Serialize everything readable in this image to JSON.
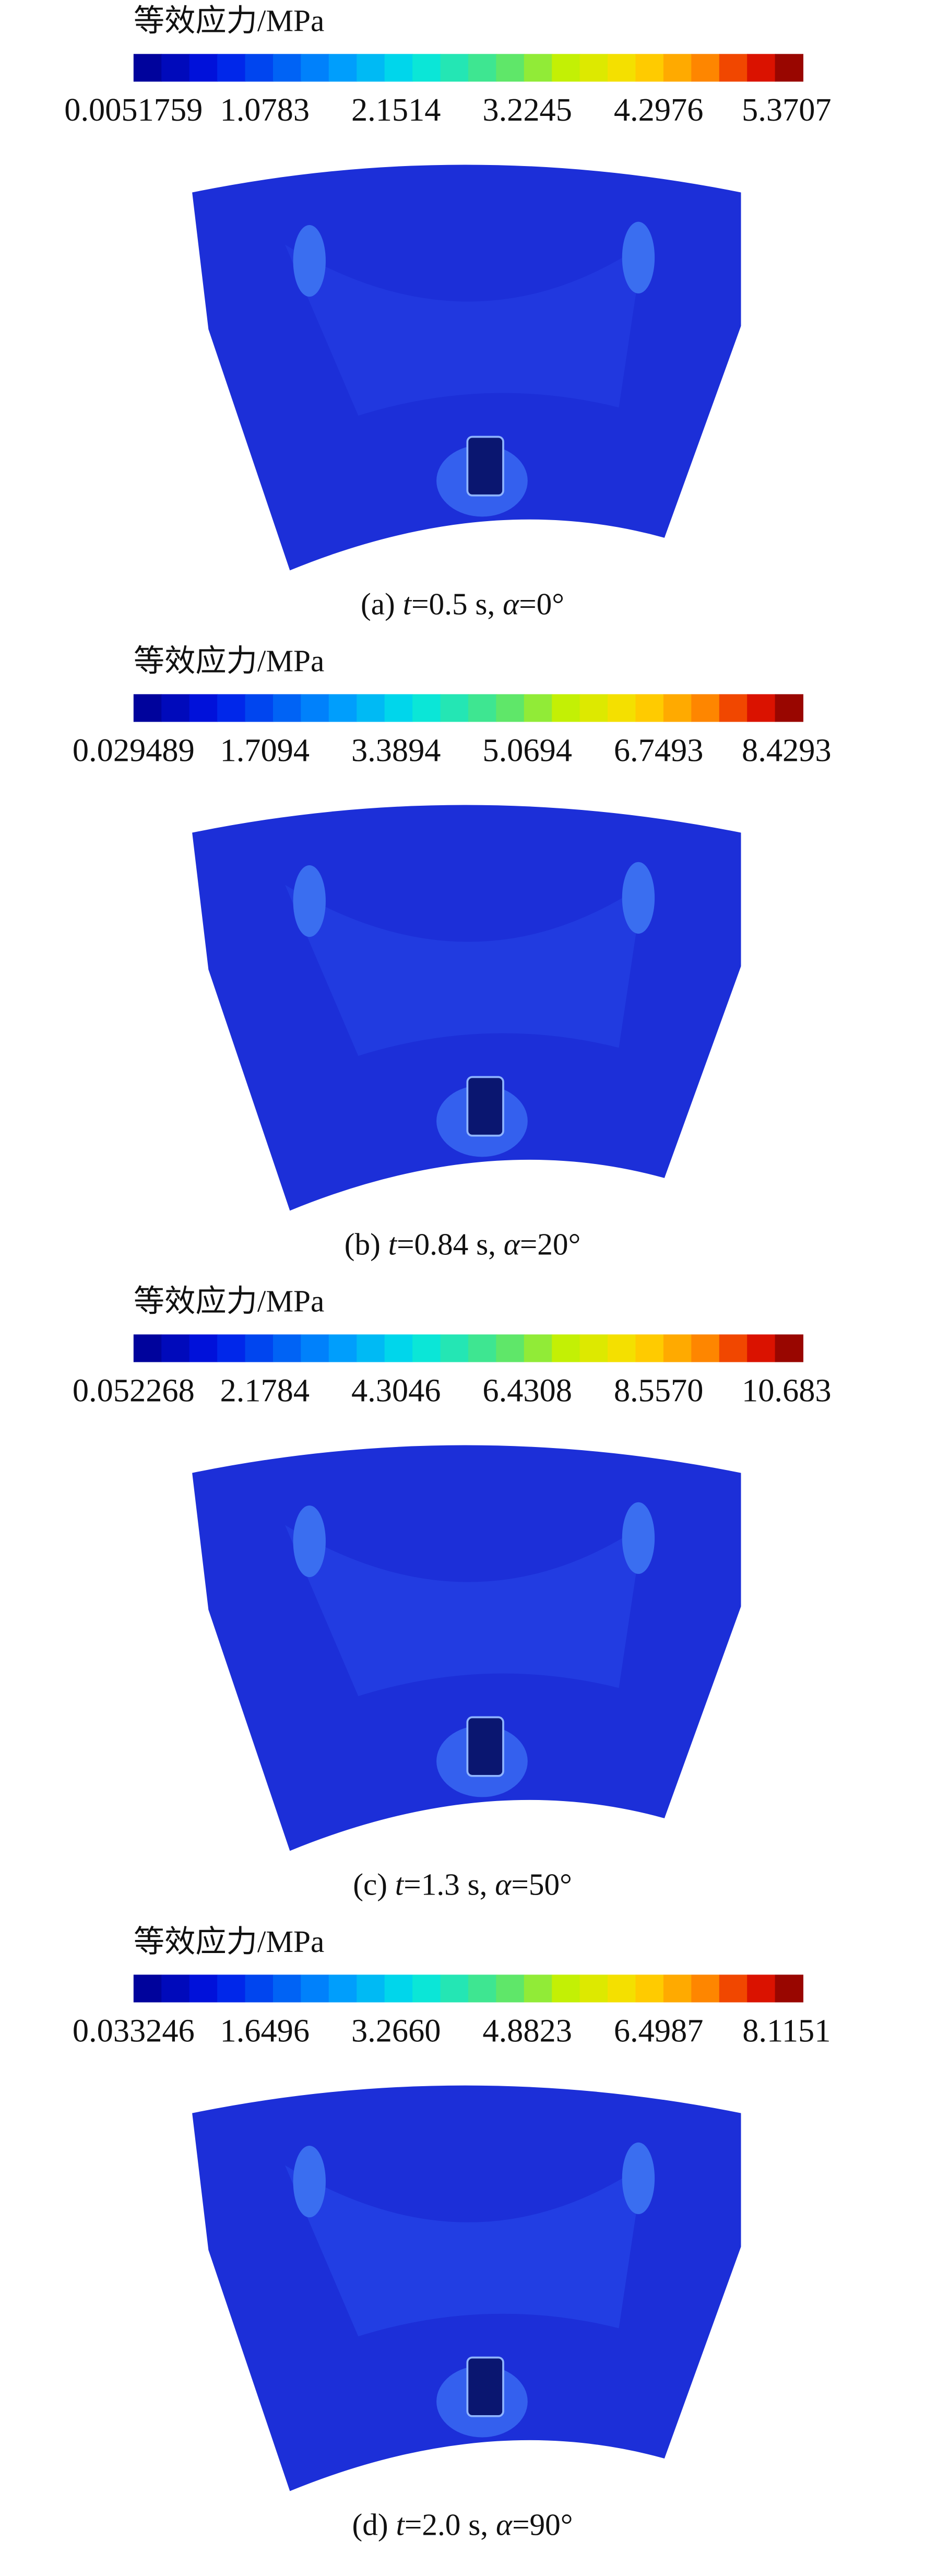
{
  "panels": [
    {
      "legend_title": "等效应力/MPa",
      "ticks": [
        "0.0051759",
        "1.0783",
        "2.1514",
        "3.2245",
        "4.2976",
        "5.3707"
      ],
      "caption": {
        "label": "(a) ",
        "t": "t",
        "t_value": "=0.5 s, ",
        "alpha": "α",
        "alpha_value": "=0°"
      }
    },
    {
      "legend_title": "等效应力/MPa",
      "ticks": [
        "0.029489",
        "1.7094",
        "3.3894",
        "5.0694",
        "6.7493",
        "8.4293"
      ],
      "caption": {
        "label": "(b) ",
        "t": "t",
        "t_value": "=0.84 s, ",
        "alpha": "α",
        "alpha_value": "=20°"
      }
    },
    {
      "legend_title": "等效应力/MPa",
      "ticks": [
        "0.052268",
        "2.1784",
        "4.3046",
        "6.4308",
        "8.5570",
        "10.683"
      ],
      "caption": {
        "label": "(c) ",
        "t": "t",
        "t_value": "=1.3 s, ",
        "alpha": "α",
        "alpha_value": "=50°"
      }
    },
    {
      "legend_title": "等效应力/MPa",
      "ticks": [
        "0.033246",
        "1.6496",
        "3.2660",
        "4.8823",
        "6.4987",
        "8.1151"
      ],
      "caption": {
        "label": "(d) ",
        "t": "t",
        "t_value": "=2.0 s, ",
        "alpha": "α",
        "alpha_value": "=90°"
      }
    }
  ]
}
